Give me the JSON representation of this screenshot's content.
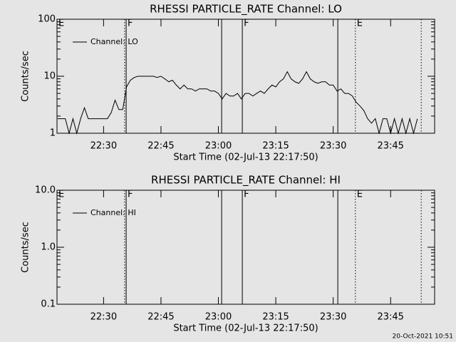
{
  "chart_data": [
    {
      "type": "line",
      "title": "RHESSI PARTICLE_RATE Channel: LO",
      "xlabel": "Start Time (02-Jul-13 22:17:50)",
      "ylabel": "Counts/sec",
      "log_y": true,
      "legend": "upper-left",
      "xlim": [
        17.83,
        116.5
      ],
      "xticks": [
        {
          "value": 30,
          "label": "22:30"
        },
        {
          "value": 45,
          "label": "22:45"
        },
        {
          "value": 60,
          "label": "23:00"
        },
        {
          "value": 75,
          "label": "23:15"
        },
        {
          "value": 90,
          "label": "23:30"
        },
        {
          "value": 105,
          "label": "23:45"
        }
      ],
      "ylim": [
        1,
        100
      ],
      "yticks": [
        1,
        10,
        100
      ],
      "vlines": [
        {
          "x": 35.5,
          "dotted": true
        },
        {
          "x": 35.9,
          "dotted": false
        },
        {
          "x": 60.85,
          "dotted": false
        },
        {
          "x": 66.25,
          "dotted": false
        },
        {
          "x": 91.2,
          "dotted": false
        },
        {
          "x": 95.8,
          "dotted": true
        },
        {
          "x": 113.0,
          "dotted": true
        }
      ],
      "flags": [
        {
          "x": 17.83,
          "label": "E"
        },
        {
          "x": 35.9,
          "label": "F"
        },
        {
          "x": 66.25,
          "label": "F"
        },
        {
          "x": 95.8,
          "label": "E"
        }
      ],
      "x": [
        18,
        19,
        20,
        21,
        22,
        23,
        24,
        25,
        26,
        27,
        28,
        29,
        30,
        31,
        32,
        33,
        34,
        35,
        36,
        37,
        38,
        39,
        40,
        41,
        42,
        43,
        44,
        45,
        46,
        47,
        48,
        49,
        50,
        51,
        52,
        53,
        54,
        55,
        56,
        57,
        58,
        59,
        60,
        61,
        62,
        63,
        64,
        65,
        66,
        67,
        68,
        69,
        70,
        71,
        72,
        73,
        74,
        75,
        76,
        77,
        78,
        79,
        80,
        81,
        82,
        83,
        84,
        85,
        86,
        87,
        88,
        89,
        90,
        91,
        92,
        93,
        94,
        95,
        96,
        97,
        98,
        99,
        100,
        101,
        102,
        103,
        104,
        105,
        106,
        107,
        108,
        109,
        110,
        111,
        112
      ],
      "series": [
        {
          "name": "Channel: LO",
          "color": "#000000",
          "values": [
            1.8,
            1.8,
            1.8,
            1,
            1.8,
            1,
            1.8,
            2.8,
            1.8,
            1.8,
            1.8,
            1.8,
            1.8,
            1.8,
            2.3,
            3.8,
            2.6,
            2.6,
            6.5,
            8.5,
            9.5,
            10,
            10,
            10,
            10,
            10,
            9.5,
            10,
            9,
            8,
            8.5,
            7,
            6,
            7,
            6,
            6,
            5.5,
            6,
            6,
            6,
            5.5,
            5.5,
            5,
            4,
            5,
            4.5,
            4.5,
            5,
            4,
            5,
            5,
            4.5,
            5,
            5.5,
            5,
            6,
            7,
            6.5,
            8,
            9,
            12,
            9,
            8,
            7.5,
            9,
            12,
            9,
            8,
            7.5,
            8,
            8,
            7,
            7,
            5.5,
            6,
            5,
            5,
            4.5,
            3.5,
            3,
            2.5,
            1.8,
            1.5,
            1.8,
            1,
            1.8,
            1.8,
            1,
            1.8,
            1,
            1.8,
            1,
            1.8,
            1,
            1.8
          ]
        }
      ]
    },
    {
      "type": "line",
      "title": "RHESSI PARTICLE_RATE Channel: HI",
      "xlabel": "Start Time (02-Jul-13 22:17:50)",
      "ylabel": "Counts/sec",
      "log_y": true,
      "legend": "upper-left",
      "xlim": [
        17.83,
        116.5
      ],
      "xticks": [
        {
          "value": 30,
          "label": "22:30"
        },
        {
          "value": 45,
          "label": "22:45"
        },
        {
          "value": 60,
          "label": "23:00"
        },
        {
          "value": 75,
          "label": "23:15"
        },
        {
          "value": 90,
          "label": "23:30"
        },
        {
          "value": 105,
          "label": "23:45"
        }
      ],
      "ylim": [
        0.1,
        10
      ],
      "yticks": [
        0.1,
        {
          "value": 1,
          "label": "1.0"
        },
        {
          "value": 10,
          "label": "10.0"
        }
      ],
      "vlines": [
        {
          "x": 35.5,
          "dotted": true
        },
        {
          "x": 35.9,
          "dotted": false
        },
        {
          "x": 60.85,
          "dotted": false
        },
        {
          "x": 66.25,
          "dotted": false
        },
        {
          "x": 91.2,
          "dotted": false
        },
        {
          "x": 95.8,
          "dotted": true
        },
        {
          "x": 113.0,
          "dotted": true
        }
      ],
      "flags": [
        {
          "x": 17.83,
          "label": "E"
        },
        {
          "x": 35.9,
          "label": "F"
        },
        {
          "x": 66.25,
          "label": "F"
        },
        {
          "x": 95.8,
          "label": "E"
        }
      ],
      "x": [],
      "series": [
        {
          "name": "Channel: HI",
          "color": "#000000",
          "values": []
        }
      ]
    }
  ],
  "timestamp": "20-Oct-2021 10:51"
}
